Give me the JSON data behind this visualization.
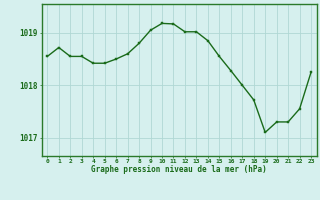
{
  "x": [
    0,
    1,
    2,
    3,
    4,
    5,
    6,
    7,
    8,
    9,
    10,
    11,
    12,
    13,
    14,
    15,
    16,
    17,
    18,
    19,
    20,
    21,
    22,
    23
  ],
  "y": [
    1018.55,
    1018.72,
    1018.55,
    1018.55,
    1018.42,
    1018.42,
    1018.5,
    1018.6,
    1018.8,
    1019.05,
    1019.18,
    1019.17,
    1019.02,
    1019.02,
    1018.85,
    1018.55,
    1018.28,
    1018.0,
    1017.72,
    1017.1,
    1017.3,
    1017.3,
    1017.55,
    1018.25
  ],
  "ylim": [
    1016.65,
    1019.55
  ],
  "yticks": [
    1017,
    1018,
    1019
  ],
  "xticks": [
    0,
    1,
    2,
    3,
    4,
    5,
    6,
    7,
    8,
    9,
    10,
    11,
    12,
    13,
    14,
    15,
    16,
    17,
    18,
    19,
    20,
    21,
    22,
    23
  ],
  "line_color": "#1a6b1a",
  "marker": "s",
  "markersize": 2.0,
  "linewidth": 1.0,
  "bg_color": "#d6f0ee",
  "grid_color": "#b0d8d4",
  "xlabel": "Graphe pression niveau de la mer (hPa)",
  "xlabel_color": "#1a6b1a",
  "tick_color": "#1a6b1a",
  "spine_color": "#2a7a2a",
  "figsize": [
    3.2,
    2.0
  ],
  "dpi": 100
}
